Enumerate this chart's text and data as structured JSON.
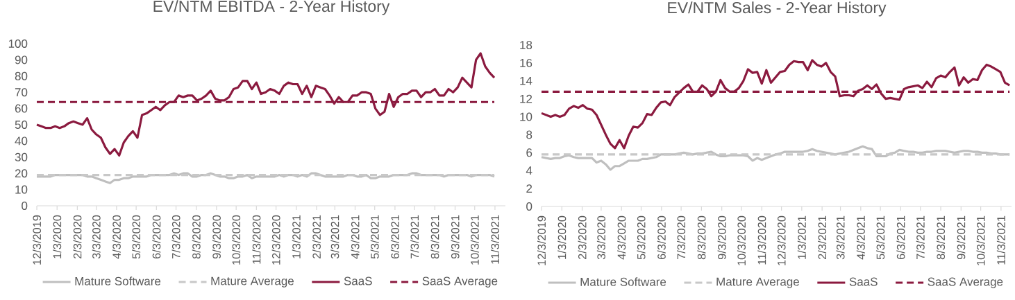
{
  "chart_data": [
    {
      "type": "line",
      "title": "EV/NTM EBITDA - 2-Year History",
      "marker": "none",
      "legend": "bottom",
      "xlim": [
        "2019-12-03",
        "2021-11-19"
      ],
      "ylim": [
        0,
        100
      ],
      "yticks": [
        0,
        10,
        20,
        30,
        40,
        50,
        60,
        70,
        80,
        90,
        100
      ],
      "xticks": [
        {
          "value": "2019-12-03",
          "label": "12/3/2019"
        },
        {
          "value": "2020-01-03",
          "label": "1/3/2020"
        },
        {
          "value": "2020-02-03",
          "label": "2/3/2020"
        },
        {
          "value": "2020-03-03",
          "label": "3/3/2020"
        },
        {
          "value": "2020-04-03",
          "label": "4/3/2020"
        },
        {
          "value": "2020-05-03",
          "label": "5/3/2020"
        },
        {
          "value": "2020-06-03",
          "label": "6/3/2020"
        },
        {
          "value": "2020-07-03",
          "label": "7/3/2020"
        },
        {
          "value": "2020-08-03",
          "label": "8/3/2020"
        },
        {
          "value": "2020-09-03",
          "label": "9/3/2020"
        },
        {
          "value": "2020-10-03",
          "label": "10/3/2020"
        },
        {
          "value": "2020-11-03",
          "label": "11/3/2020"
        },
        {
          "value": "2020-12-03",
          "label": "12/3/2020"
        },
        {
          "value": "2021-01-03",
          "label": "1/3/2021"
        },
        {
          "value": "2021-02-03",
          "label": "2/3/2021"
        },
        {
          "value": "2021-03-03",
          "label": "3/3/2021"
        },
        {
          "value": "2021-04-03",
          "label": "4/3/2021"
        },
        {
          "value": "2021-05-03",
          "label": "5/3/2021"
        },
        {
          "value": "2021-06-03",
          "label": "6/3/2021"
        },
        {
          "value": "2021-07-03",
          "label": "7/3/2021"
        },
        {
          "value": "2021-08-03",
          "label": "8/3/2021"
        },
        {
          "value": "2021-09-03",
          "label": "9/3/2021"
        },
        {
          "value": "2021-10-03",
          "label": "10/3/2021"
        },
        {
          "value": "2021-11-03",
          "label": "11/3/2021"
        }
      ],
      "x": [
        "2019-12-03",
        "2019-12-10",
        "2019-12-17",
        "2019-12-24",
        "2019-12-31",
        "2020-01-07",
        "2020-01-14",
        "2020-01-21",
        "2020-01-28",
        "2020-02-04",
        "2020-02-11",
        "2020-02-18",
        "2020-02-25",
        "2020-03-03",
        "2020-03-10",
        "2020-03-17",
        "2020-03-24",
        "2020-03-31",
        "2020-04-07",
        "2020-04-14",
        "2020-04-21",
        "2020-04-28",
        "2020-05-05",
        "2020-05-12",
        "2020-05-19",
        "2020-05-26",
        "2020-06-02",
        "2020-06-09",
        "2020-06-16",
        "2020-06-23",
        "2020-06-30",
        "2020-07-07",
        "2020-07-14",
        "2020-07-21",
        "2020-07-28",
        "2020-08-04",
        "2020-08-11",
        "2020-08-18",
        "2020-08-25",
        "2020-09-01",
        "2020-09-08",
        "2020-09-15",
        "2020-09-22",
        "2020-09-29",
        "2020-10-06",
        "2020-10-13",
        "2020-10-20",
        "2020-10-27",
        "2020-11-03",
        "2020-11-10",
        "2020-11-17",
        "2020-11-24",
        "2020-12-01",
        "2020-12-08",
        "2020-12-15",
        "2020-12-22",
        "2020-12-29",
        "2021-01-05",
        "2021-01-12",
        "2021-01-19",
        "2021-01-26",
        "2021-02-02",
        "2021-02-09",
        "2021-02-16",
        "2021-02-23",
        "2021-03-02",
        "2021-03-09",
        "2021-03-16",
        "2021-03-23",
        "2021-03-30",
        "2021-04-06",
        "2021-04-13",
        "2021-04-20",
        "2021-04-27",
        "2021-05-04",
        "2021-05-11",
        "2021-05-18",
        "2021-05-25",
        "2021-06-01",
        "2021-06-08",
        "2021-06-15",
        "2021-06-22",
        "2021-06-29",
        "2021-07-06",
        "2021-07-13",
        "2021-07-20",
        "2021-07-27",
        "2021-08-03",
        "2021-08-10",
        "2021-08-17",
        "2021-08-24",
        "2021-08-31",
        "2021-09-07",
        "2021-09-14",
        "2021-09-21",
        "2021-09-28",
        "2021-10-05",
        "2021-10-12",
        "2021-10-19",
        "2021-10-26",
        "2021-11-02"
      ],
      "series": [
        {
          "name": "Mature Software",
          "color": "#bfbfbf",
          "line_style": "solid",
          "values": [
            18,
            18,
            18,
            18,
            19,
            19,
            19,
            19,
            19,
            19,
            19,
            18,
            18,
            17,
            16,
            15,
            14,
            16,
            16,
            17,
            17,
            18,
            18,
            18,
            18,
            19,
            19,
            19,
            19,
            19,
            20,
            19,
            20,
            20,
            18,
            18,
            19,
            19,
            20,
            19,
            18,
            18,
            17,
            17,
            18,
            18,
            19,
            17,
            18,
            18,
            18,
            18,
            18,
            19,
            18,
            19,
            19,
            18,
            19,
            18,
            20,
            20,
            19,
            18,
            18,
            18,
            18,
            18,
            19,
            19,
            18,
            18,
            19,
            17,
            17,
            18,
            18,
            18,
            19,
            19,
            19,
            19,
            20,
            20,
            19,
            19,
            19,
            19,
            19,
            18,
            19,
            19,
            19,
            19,
            19,
            18,
            19,
            19,
            19,
            19,
            18
          ]
        },
        {
          "name": "Mature Average",
          "color": "#c8c8c8",
          "line_style": "dashed",
          "x": [
            "2019-12-03",
            "2021-11-02"
          ],
          "values": [
            19,
            19
          ]
        },
        {
          "name": "SaaS",
          "color": "#8b1a3f",
          "line_style": "solid",
          "values": [
            50,
            49,
            48,
            48,
            49,
            48,
            49,
            51,
            52,
            51,
            50,
            54,
            47,
            44,
            42,
            36,
            32,
            35,
            31,
            39,
            43,
            46,
            42,
            56,
            57,
            59,
            61,
            59,
            62,
            64,
            64,
            68,
            67,
            68,
            68,
            65,
            66,
            68,
            71,
            66,
            65,
            65,
            67,
            72,
            73,
            77,
            77,
            72,
            76,
            69,
            70,
            72,
            71,
            69,
            74,
            76,
            75,
            75,
            69,
            74,
            67,
            74,
            73,
            72,
            68,
            63,
            67,
            64,
            64,
            68,
            68,
            70,
            70,
            69,
            60,
            56,
            58,
            69,
            61,
            67,
            69,
            69,
            71,
            71,
            67,
            70,
            70,
            72,
            68,
            68,
            72,
            70,
            73,
            79,
            76,
            73,
            90,
            94,
            86,
            82,
            79
          ]
        },
        {
          "name": "SaaS Average",
          "color": "#8b1a3f",
          "line_style": "dashed",
          "x": [
            "2019-12-03",
            "2021-11-02"
          ],
          "values": [
            64,
            64
          ]
        }
      ]
    },
    {
      "type": "line",
      "title": "EV/NTM Sales - 2-Year History",
      "marker": "none",
      "legend": "bottom",
      "xlim": [
        "2019-12-03",
        "2021-11-19"
      ],
      "ylim": [
        0,
        18
      ],
      "yticks": [
        0,
        2,
        4,
        6,
        8,
        10,
        12,
        14,
        16,
        18
      ],
      "xticks": [
        {
          "value": "2019-12-03",
          "label": "12/3/2019"
        },
        {
          "value": "2020-01-03",
          "label": "1/3/2020"
        },
        {
          "value": "2020-02-03",
          "label": "2/3/2020"
        },
        {
          "value": "2020-03-03",
          "label": "3/3/2020"
        },
        {
          "value": "2020-04-03",
          "label": "4/3/2020"
        },
        {
          "value": "2020-05-03",
          "label": "5/3/2020"
        },
        {
          "value": "2020-06-03",
          "label": "6/3/2020"
        },
        {
          "value": "2020-07-03",
          "label": "7/3/2020"
        },
        {
          "value": "2020-08-03",
          "label": "8/3/2020"
        },
        {
          "value": "2020-09-03",
          "label": "9/3/2020"
        },
        {
          "value": "2020-10-03",
          "label": "10/3/2020"
        },
        {
          "value": "2020-11-03",
          "label": "11/3/2020"
        },
        {
          "value": "2020-12-03",
          "label": "12/3/2020"
        },
        {
          "value": "2021-01-03",
          "label": "1/3/2021"
        },
        {
          "value": "2021-02-03",
          "label": "2/3/2021"
        },
        {
          "value": "2021-03-03",
          "label": "3/3/2021"
        },
        {
          "value": "2021-04-03",
          "label": "4/3/2021"
        },
        {
          "value": "2021-05-03",
          "label": "5/3/2021"
        },
        {
          "value": "2021-06-03",
          "label": "6/3/2021"
        },
        {
          "value": "2021-07-03",
          "label": "7/3/2021"
        },
        {
          "value": "2021-08-03",
          "label": "8/3/2021"
        },
        {
          "value": "2021-09-03",
          "label": "9/3/2021"
        },
        {
          "value": "2021-10-03",
          "label": "10/3/2021"
        },
        {
          "value": "2021-11-03",
          "label": "11/3/2021"
        }
      ],
      "x": [
        "2019-12-03",
        "2019-12-10",
        "2019-12-17",
        "2019-12-24",
        "2019-12-31",
        "2020-01-07",
        "2020-01-14",
        "2020-01-21",
        "2020-01-28",
        "2020-02-04",
        "2020-02-11",
        "2020-02-18",
        "2020-02-25",
        "2020-03-03",
        "2020-03-10",
        "2020-03-17",
        "2020-03-24",
        "2020-03-31",
        "2020-04-07",
        "2020-04-14",
        "2020-04-21",
        "2020-04-28",
        "2020-05-05",
        "2020-05-12",
        "2020-05-19",
        "2020-05-26",
        "2020-06-02",
        "2020-06-09",
        "2020-06-16",
        "2020-06-23",
        "2020-06-30",
        "2020-07-07",
        "2020-07-14",
        "2020-07-21",
        "2020-07-28",
        "2020-08-04",
        "2020-08-11",
        "2020-08-18",
        "2020-08-25",
        "2020-09-01",
        "2020-09-08",
        "2020-09-15",
        "2020-09-22",
        "2020-09-29",
        "2020-10-06",
        "2020-10-13",
        "2020-10-20",
        "2020-10-27",
        "2020-11-03",
        "2020-11-10",
        "2020-11-17",
        "2020-11-24",
        "2020-12-01",
        "2020-12-08",
        "2020-12-15",
        "2020-12-22",
        "2020-12-29",
        "2021-01-05",
        "2021-01-12",
        "2021-01-19",
        "2021-01-26",
        "2021-02-02",
        "2021-02-09",
        "2021-02-16",
        "2021-02-23",
        "2021-03-02",
        "2021-03-09",
        "2021-03-16",
        "2021-03-23",
        "2021-03-30",
        "2021-04-06",
        "2021-04-13",
        "2021-04-20",
        "2021-04-27",
        "2021-05-04",
        "2021-05-11",
        "2021-05-18",
        "2021-05-25",
        "2021-06-01",
        "2021-06-08",
        "2021-06-15",
        "2021-06-22",
        "2021-06-29",
        "2021-07-06",
        "2021-07-13",
        "2021-07-20",
        "2021-07-27",
        "2021-08-03",
        "2021-08-10",
        "2021-08-17",
        "2021-08-24",
        "2021-08-31",
        "2021-09-07",
        "2021-09-14",
        "2021-09-21",
        "2021-09-28",
        "2021-10-05",
        "2021-10-12",
        "2021-10-19",
        "2021-10-26",
        "2021-11-02",
        "2021-11-09",
        "2021-11-16"
      ],
      "series": [
        {
          "name": "Mature Software",
          "color": "#bfbfbf",
          "line_style": "solid",
          "values": [
            5.5,
            5.4,
            5.3,
            5.4,
            5.4,
            5.6,
            5.7,
            5.5,
            5.4,
            5.4,
            5.4,
            5.4,
            4.9,
            5.1,
            4.7,
            4.1,
            4.5,
            4.5,
            4.8,
            5.1,
            5.1,
            5.1,
            5.3,
            5.3,
            5.4,
            5.5,
            5.8,
            5.8,
            5.8,
            5.8,
            5.9,
            6.0,
            5.9,
            5.8,
            5.9,
            5.9,
            6.0,
            6.1,
            5.8,
            5.6,
            5.6,
            5.7,
            5.7,
            5.7,
            5.7,
            5.6,
            5.1,
            5.4,
            5.2,
            5.4,
            5.6,
            5.8,
            5.9,
            6.1,
            6.1,
            6.1,
            6.1,
            6.1,
            6.2,
            6.4,
            6.2,
            6.1,
            6.0,
            5.9,
            5.8,
            5.9,
            6.0,
            6.1,
            6.3,
            6.5,
            6.7,
            6.5,
            6.4,
            5.6,
            5.6,
            5.6,
            5.9,
            6.0,
            6.3,
            6.2,
            6.1,
            6.1,
            6.0,
            6.0,
            6.1,
            6.1,
            6.2,
            6.2,
            6.2,
            6.1,
            6.0,
            6.1,
            6.2,
            6.2,
            6.1,
            6.1,
            6.0,
            6.0,
            5.9,
            5.9,
            5.8,
            5.8,
            5.8
          ]
        },
        {
          "name": "Mature Average",
          "color": "#c8c8c8",
          "line_style": "dashed",
          "x": [
            "2019-12-03",
            "2021-11-16"
          ],
          "values": [
            5.8,
            5.8
          ]
        },
        {
          "name": "SaaS",
          "color": "#8b1a3f",
          "line_style": "solid",
          "values": [
            10.4,
            10.2,
            10.0,
            10.2,
            10.0,
            10.2,
            10.9,
            11.2,
            11.0,
            11.3,
            10.9,
            10.8,
            10.2,
            9.1,
            8.0,
            7.0,
            6.5,
            7.4,
            6.5,
            7.9,
            8.9,
            8.8,
            9.3,
            10.3,
            10.2,
            11.0,
            11.6,
            11.7,
            11.3,
            12.2,
            12.7,
            13.2,
            13.6,
            12.8,
            12.8,
            13.5,
            13.1,
            12.3,
            12.8,
            14.1,
            13.2,
            12.8,
            12.8,
            13.2,
            14.0,
            15.3,
            14.9,
            15.0,
            13.7,
            15.2,
            13.8,
            14.4,
            15.0,
            15.1,
            15.8,
            16.2,
            16.1,
            16.1,
            15.2,
            16.3,
            15.8,
            15.6,
            16.0,
            15.0,
            14.5,
            12.3,
            12.4,
            12.4,
            12.3,
            12.9,
            13.1,
            13.5,
            13.1,
            13.6,
            12.6,
            12.0,
            12.1,
            12.0,
            11.9,
            13.1,
            13.3,
            13.4,
            13.5,
            13.2,
            13.9,
            13.3,
            14.3,
            14.6,
            14.4,
            15.0,
            15.5,
            13.5,
            14.4,
            13.8,
            14.2,
            14.1,
            15.2,
            15.8,
            15.6,
            15.3,
            15.0,
            13.8,
            13.5
          ]
        },
        {
          "name": "SaaS Average",
          "color": "#8b1a3f",
          "line_style": "dashed",
          "x": [
            "2019-12-03",
            "2021-11-16"
          ],
          "values": [
            12.8,
            12.8
          ]
        }
      ]
    }
  ]
}
